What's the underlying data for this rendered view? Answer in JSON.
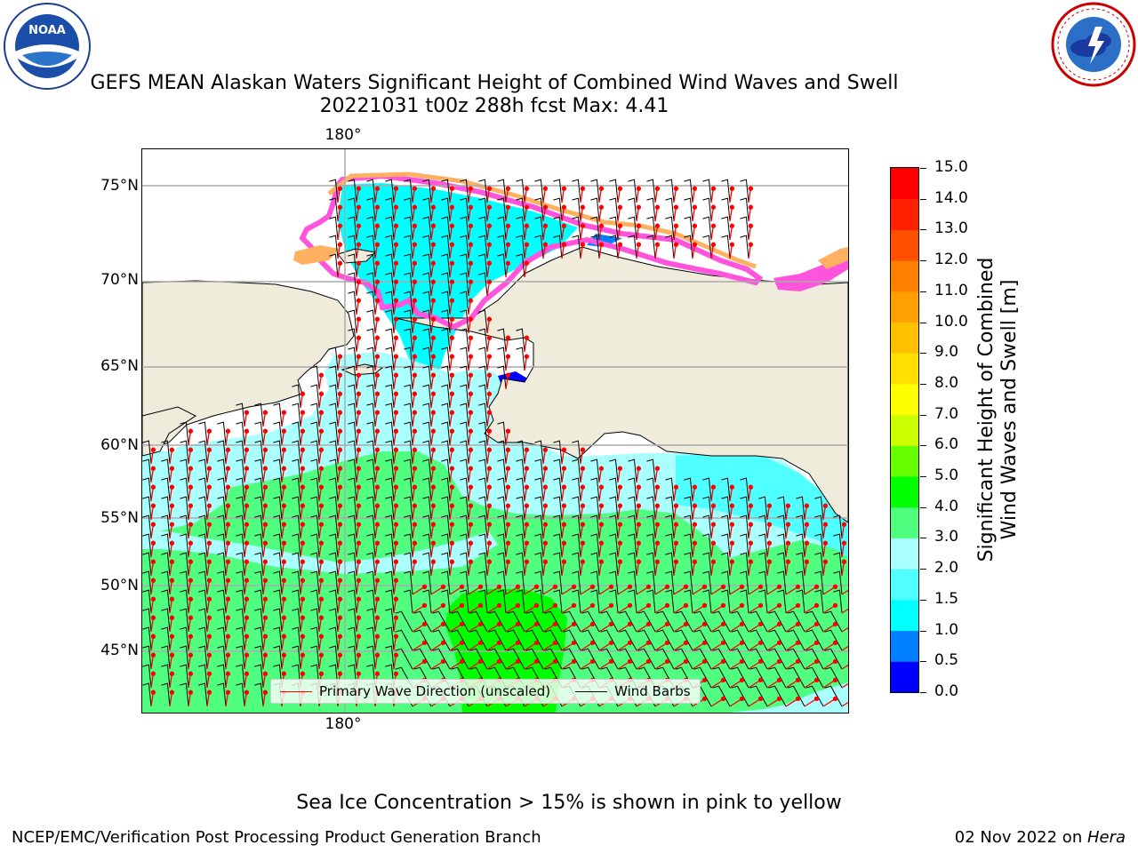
{
  "title_line1": "GEFS MEAN Alaskan Waters Significant Height of Combined Wind Waves and Swell",
  "title_line2": "20221031 t00z 288h fcst   Max: 4.41",
  "lat_labels": [
    "75°N",
    "70°N",
    "65°N",
    "60°N",
    "55°N",
    "50°N",
    "45°N"
  ],
  "lon_label_top": "180°",
  "lon_label_bottom": "180°",
  "legend": {
    "wave": {
      "label": "Primary Wave Direction (unscaled)",
      "color": "#ff0000"
    },
    "wind": {
      "label": "Wind Barbs",
      "color": "#000000"
    }
  },
  "colorbar": {
    "label": "Significant Height of Combined Wind Waves and Swell [m]",
    "label_line1": "Significant Height of Combined",
    "label_line2": "Wind Waves and Swell [m]",
    "ticks": [
      "0.0",
      "0.5",
      "1.0",
      "1.5",
      "2.0",
      "3.0",
      "4.0",
      "5.0",
      "6.0",
      "7.0",
      "8.0",
      "9.0",
      "10.0",
      "11.0",
      "12.0",
      "13.0",
      "14.0",
      "15.0"
    ],
    "colors": [
      "#0000ff",
      "#0080ff",
      "#00ffff",
      "#50ffff",
      "#aaffff",
      "#50ff80",
      "#00ff00",
      "#66ff00",
      "#ccff00",
      "#ffff00",
      "#ffe000",
      "#ffc000",
      "#ffa000",
      "#ff8000",
      "#ff5000",
      "#ff2000",
      "#ff0000"
    ]
  },
  "colors": {
    "land": "#efecdc",
    "ice_pink": "#ff55dd",
    "ice_orange": "#ffb060",
    "ice_yellow": "#ffee80"
  },
  "logos": {
    "noaa": "NOAA",
    "nws": "NATIONAL WEATHER SERVICE"
  },
  "note": "Sea Ice Concentration > 15% is shown in pink to yellow",
  "footer_left": "NCEP/EMC/Verification Post Processing Product Generation Branch",
  "footer_right_prefix": "02 Nov 2022 on ",
  "footer_right_italic": "Hera"
}
